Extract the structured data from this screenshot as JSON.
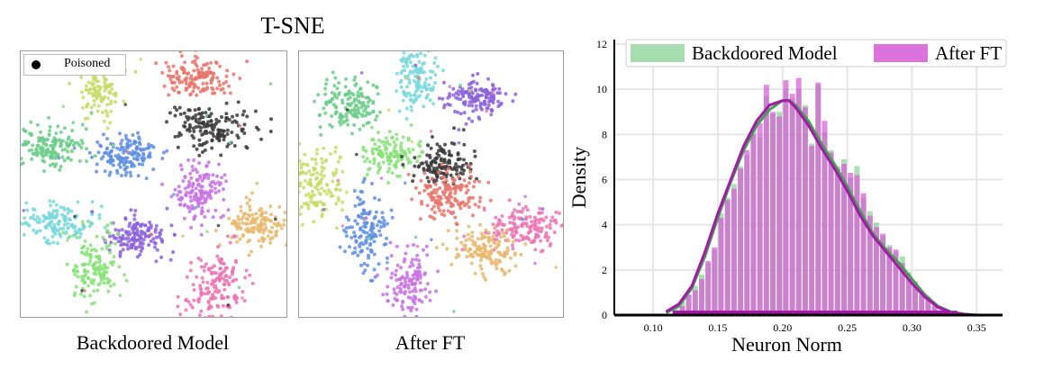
{
  "figure": {
    "title": "T-SNE",
    "panels": [
      {
        "caption": "Backdoored Model",
        "legend_label": "Poisoned"
      },
      {
        "caption": "After FT"
      }
    ]
  },
  "tsne_colors": [
    "#e8766b",
    "#3a3a3a",
    "#c8dc6a",
    "#6ccc8a",
    "#5f8fe0",
    "#c873e4",
    "#e8b86e",
    "#7ad8dc",
    "#8c62dc",
    "#8ae27a",
    "#ec74b4",
    "#61d6a0"
  ],
  "chart_data": {
    "type": "histogram",
    "xlabel": "Neuron Norm",
    "ylabel": "Density",
    "xlim": [
      0.07,
      0.37
    ],
    "ylim": [
      0,
      12.2
    ],
    "xticks": [
      0.1,
      0.15,
      0.2,
      0.25,
      0.3,
      0.35
    ],
    "yticks": [
      0,
      2,
      4,
      6,
      8,
      10,
      12
    ],
    "grid": true,
    "legend_position": "top",
    "bin_edges": [
      0.115,
      0.12,
      0.125,
      0.13,
      0.135,
      0.14,
      0.145,
      0.15,
      0.155,
      0.16,
      0.165,
      0.17,
      0.175,
      0.18,
      0.185,
      0.19,
      0.195,
      0.2,
      0.205,
      0.21,
      0.215,
      0.22,
      0.225,
      0.23,
      0.235,
      0.24,
      0.245,
      0.25,
      0.255,
      0.26,
      0.265,
      0.27,
      0.275,
      0.28,
      0.285,
      0.29,
      0.295,
      0.3,
      0.305,
      0.31,
      0.315,
      0.32,
      0.325,
      0.33,
      0.335
    ],
    "series": [
      {
        "name": "Backdoored Model",
        "color": "#8fd49a",
        "values": [
          0.3,
          0.6,
          0.9,
          1.3,
          1.8,
          2.3,
          2.9,
          4.5,
          5.2,
          5.8,
          6.6,
          7.1,
          8.3,
          7.9,
          9.7,
          8.9,
          9.0,
          10.0,
          9.6,
          10.0,
          9.3,
          7.6,
          10.2,
          8.1,
          7.3,
          6.6,
          6.9,
          6.1,
          6.6,
          5.2,
          4.6,
          4.1,
          3.5,
          3.1,
          2.8,
          2.6,
          1.9,
          1.5,
          1.0,
          0.8,
          0.5,
          0.3,
          0.2,
          0.1
        ]
      },
      {
        "name": "After FT",
        "color": "#d65ad6",
        "kde_color": "#a31aa8",
        "values": [
          0.2,
          0.4,
          0.9,
          1.1,
          1.6,
          2.4,
          3.0,
          4.3,
          5.1,
          5.6,
          6.5,
          7.3,
          8.0,
          8.5,
          10.2,
          9.0,
          8.8,
          10.4,
          9.8,
          10.5,
          9.2,
          7.5,
          10.3,
          8.6,
          7.2,
          6.5,
          6.7,
          6.3,
          6.2,
          5.4,
          4.4,
          3.9,
          3.6,
          3.0,
          2.9,
          2.3,
          1.6,
          1.4,
          0.9,
          0.7,
          0.4,
          0.2,
          0.1,
          0.1
        ]
      }
    ],
    "kde": {
      "x": [
        0.11,
        0.12,
        0.13,
        0.14,
        0.15,
        0.16,
        0.17,
        0.18,
        0.19,
        0.2,
        0.205,
        0.21,
        0.22,
        0.23,
        0.24,
        0.25,
        0.26,
        0.27,
        0.28,
        0.29,
        0.3,
        0.31,
        0.32,
        0.33,
        0.34,
        0.35
      ],
      "backdoored": [
        0.1,
        0.4,
        1.2,
        2.6,
        4.3,
        5.9,
        7.3,
        8.4,
        9.1,
        9.5,
        9.5,
        9.3,
        8.6,
        7.6,
        6.7,
        5.7,
        4.6,
        3.6,
        2.9,
        2.3,
        1.6,
        0.9,
        0.4,
        0.15,
        0.05,
        0.0
      ],
      "after_ft": [
        0.15,
        0.5,
        1.3,
        2.8,
        4.5,
        6.0,
        7.5,
        8.6,
        9.3,
        9.5,
        9.5,
        9.2,
        8.4,
        7.4,
        6.5,
        5.5,
        4.4,
        3.5,
        2.8,
        2.1,
        1.4,
        0.8,
        0.35,
        0.12,
        0.04,
        0.0
      ]
    }
  }
}
